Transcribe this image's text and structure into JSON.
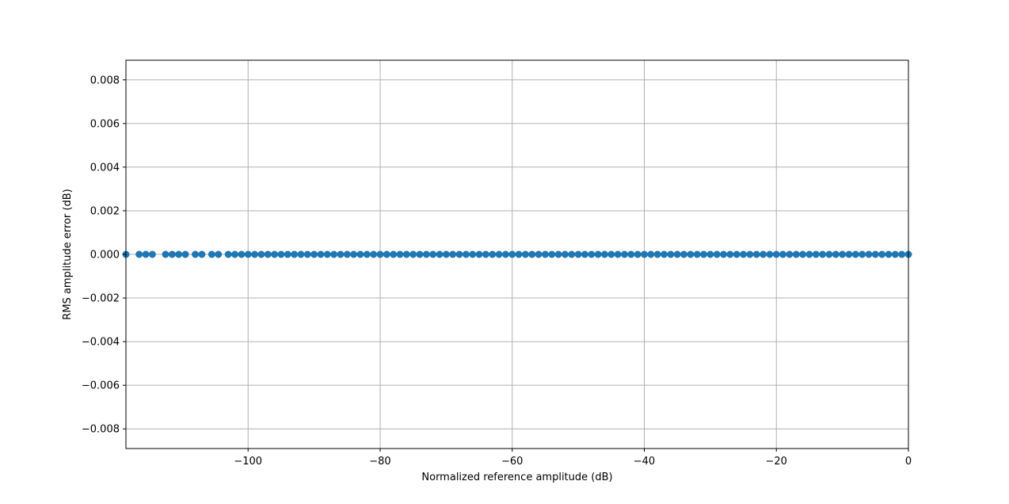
{
  "chart_data": {
    "type": "scatter",
    "title": "",
    "xlabel": "Normalized reference amplitude (dB)",
    "ylabel": "RMS amplitude error (dB)",
    "xlim": [
      -118.5,
      0
    ],
    "ylim": [
      -0.0089,
      0.0089
    ],
    "grid": true,
    "x_ticks": [
      -100,
      -80,
      -60,
      -40,
      -20,
      0
    ],
    "x_tick_labels": [
      "−100",
      "−80",
      "−60",
      "−40",
      "−20",
      "0"
    ],
    "y_ticks": [
      0.008,
      0.006,
      0.004,
      0.002,
      0.0,
      -0.002,
      -0.004,
      -0.006,
      -0.008
    ],
    "y_tick_labels": [
      "0.008",
      "0.006",
      "0.004",
      "0.002",
      "0.000",
      "−0.002",
      "−0.004",
      "−0.006",
      "−0.008"
    ],
    "marker_color": "#1f77b4",
    "series": [
      {
        "x": [
          -118.5,
          -116.5,
          -115.5,
          -114.5,
          -112.5,
          -111.5,
          -110.5,
          -109.5,
          -108.0,
          -107.0,
          -105.5,
          -104.5,
          -103.0,
          -102.0,
          -101.0,
          -100.0,
          -99,
          -98,
          -97,
          -96,
          -95,
          -94,
          -93,
          -92,
          -91,
          -90,
          -89,
          -88,
          -87,
          -86,
          -85,
          -84,
          -83,
          -82,
          -81,
          -80,
          -79,
          -78,
          -77,
          -76,
          -75,
          -74,
          -73,
          -72,
          -71,
          -70,
          -69,
          -68,
          -67,
          -66,
          -65,
          -64,
          -63,
          -62,
          -61,
          -60,
          -59,
          -58,
          -57,
          -56,
          -55,
          -54,
          -53,
          -52,
          -51,
          -50,
          -49,
          -48,
          -47,
          -46,
          -45,
          -44,
          -43,
          -42,
          -41,
          -40,
          -39,
          -38,
          -37,
          -36,
          -35,
          -34,
          -33,
          -32,
          -31,
          -30,
          -29,
          -28,
          -27,
          -26,
          -25,
          -24,
          -23,
          -22,
          -21,
          -20,
          -19,
          -18,
          -17,
          -16,
          -15,
          -14,
          -13,
          -12,
          -11,
          -10,
          -9,
          -8,
          -7,
          -6,
          -5,
          -4,
          -3,
          -2,
          -1,
          0
        ],
        "y": [
          0,
          0,
          0,
          0,
          0,
          0,
          0,
          0,
          0,
          0,
          0,
          0,
          0,
          0,
          0,
          0,
          0,
          0,
          0,
          0,
          0,
          0,
          0,
          0,
          0,
          0,
          0,
          0,
          0,
          0,
          0,
          0,
          0,
          0,
          0,
          0,
          0,
          0,
          0,
          0,
          0,
          0,
          0,
          0,
          0,
          0,
          0,
          0,
          0,
          0,
          0,
          0,
          0,
          0,
          0,
          0,
          0,
          0,
          0,
          0,
          0,
          0,
          0,
          0,
          0,
          0,
          0,
          0,
          0,
          0,
          0,
          0,
          0,
          0,
          0,
          0,
          0,
          0,
          0,
          0,
          0,
          0,
          0,
          0,
          0,
          0,
          0,
          0,
          0,
          0,
          0,
          0,
          0,
          0,
          0,
          0,
          0,
          0,
          0,
          0,
          0,
          0,
          0,
          0,
          0,
          0,
          0,
          0,
          0,
          0,
          0,
          0,
          0,
          0,
          0,
          0
        ]
      }
    ]
  }
}
